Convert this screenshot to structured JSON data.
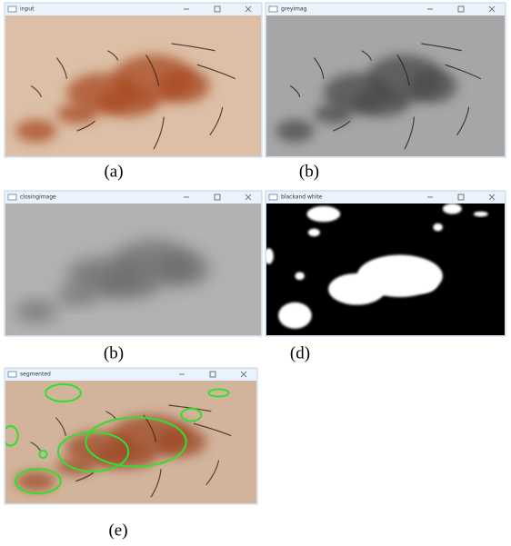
{
  "panels": [
    {
      "window_title": "input",
      "caption": "(a)"
    },
    {
      "window_title": "greyimag",
      "caption": "(b)"
    },
    {
      "window_title": "closingimage",
      "caption": "(b)"
    },
    {
      "window_title": "blackand white",
      "caption": "(d)"
    },
    {
      "window_title": "segmented",
      "caption": "(e)"
    }
  ]
}
